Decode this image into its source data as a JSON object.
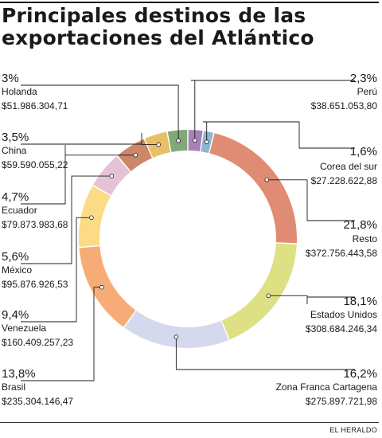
{
  "header": {
    "title_line1": "Principales destinos de las",
    "title_line2": "exportaciones del Atlántico"
  },
  "footer": {
    "credit": "EL HERALDO"
  },
  "chart_data": {
    "type": "pie",
    "title": "Principales destinos de las exportaciones del Atlántico",
    "donut": true,
    "slices": [
      {
        "name": "Perú",
        "percent_label": "2,3%",
        "value_label": "$38.651.053,80",
        "value": 38651053.8,
        "color": "#a783b5"
      },
      {
        "name": "Corea del sur",
        "percent_label": "1,6%",
        "value_label": "$27.228.622,88",
        "value": 27228622.88,
        "color": "#8eb4d4"
      },
      {
        "name": "Resto",
        "percent_label": "21,8%",
        "value_label": "$372.756.443,58",
        "value": 372756443.58,
        "color": "#e08b73"
      },
      {
        "name": "Estados Unidos",
        "percent_label": "18,1%",
        "value_label": "$308.684.246,34",
        "value": 308684246.34,
        "color": "#dde083"
      },
      {
        "name": "Zona Franca Cartagena",
        "percent_label": "16,2%",
        "value_label": "$275.897.721,98",
        "value": 275897721.98,
        "color": "#d4d9ee"
      },
      {
        "name": "Brasil",
        "percent_label": "13,8%",
        "value_label": "$235.304.146,47",
        "value": 235304146.47,
        "color": "#f7ac78"
      },
      {
        "name": "Venezuela",
        "percent_label": "9,4%",
        "value_label": "$160.409.257,23",
        "value": 160409257.23,
        "color": "#fbdb86"
      },
      {
        "name": "México",
        "percent_label": "5,6%",
        "value_label": "$95.876.926,53",
        "value": 95876926.53,
        "color": "#e6c2d6"
      },
      {
        "name": "Ecuador",
        "percent_label": "4,7%",
        "value_label": "$79.873.983,68",
        "value": 79873983.68,
        "color": "#cc8668"
      },
      {
        "name": "China",
        "percent_label": "3,5%",
        "value_label": "$59.590.055,22",
        "value": 59590055.22,
        "color": "#e8bf66"
      },
      {
        "name": "Holanda",
        "percent_label": "3%",
        "value_label": "$51.986.304,71",
        "value": 51986304.71,
        "color": "#83a877"
      }
    ]
  }
}
